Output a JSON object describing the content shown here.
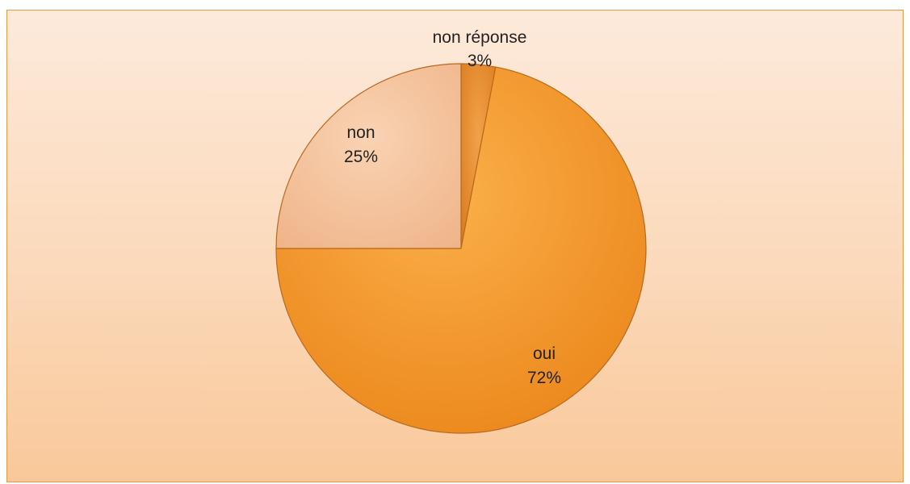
{
  "chart_data": {
    "type": "pie",
    "title": "",
    "slices": [
      {
        "label": "non réponse",
        "value": 3,
        "percent_label": "3%",
        "color": "#e58a22"
      },
      {
        "label": "oui",
        "value": 72,
        "percent_label": "72%",
        "color": "#f28f1f"
      },
      {
        "label": "non",
        "value": 25,
        "percent_label": "25%",
        "color": "#f3bf97"
      }
    ],
    "start_angle_deg": 0,
    "direction": "clockwise",
    "legend": "none"
  }
}
